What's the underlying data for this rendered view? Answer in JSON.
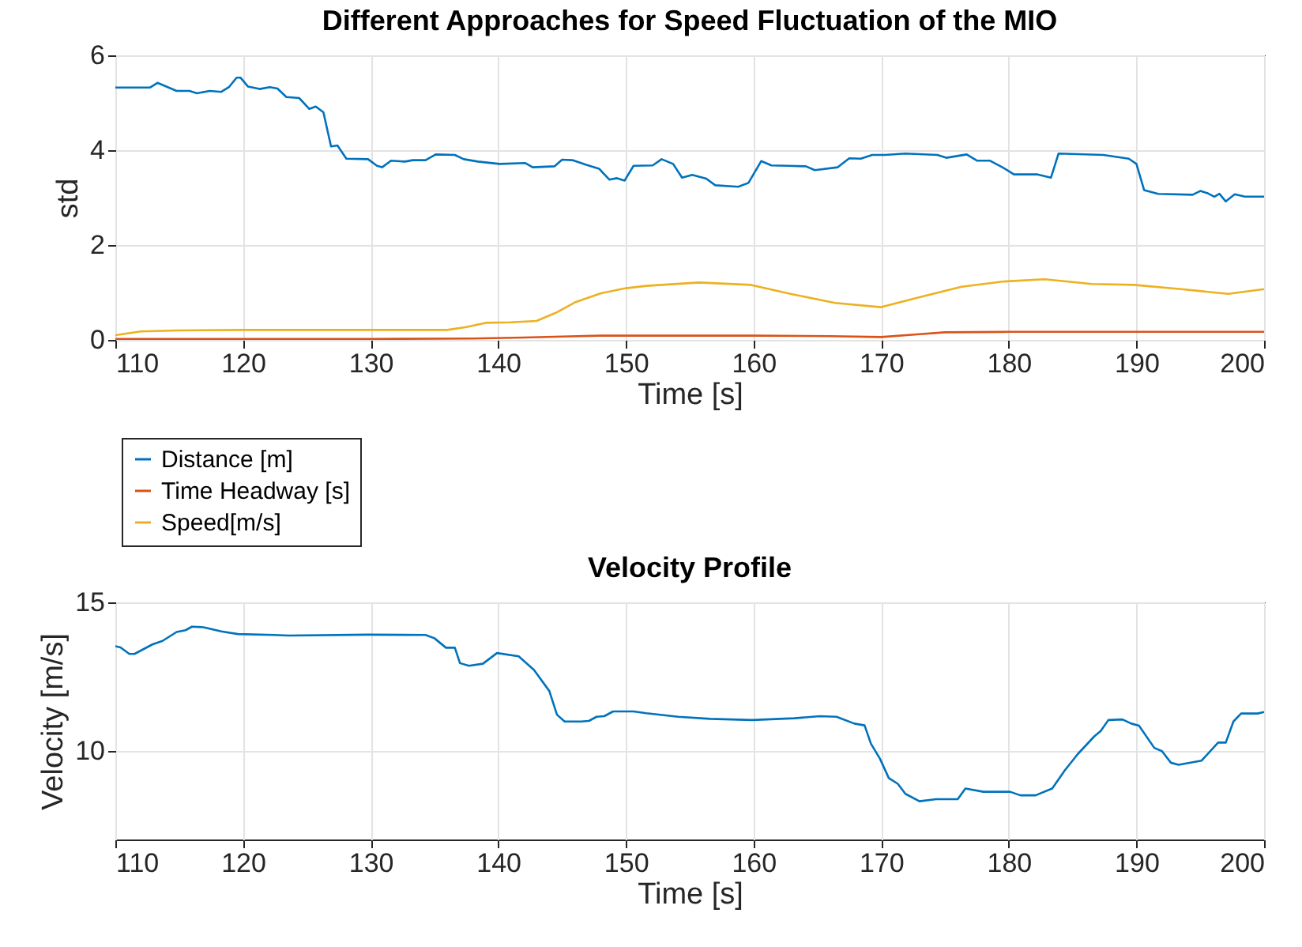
{
  "chart_data": [
    {
      "type": "line",
      "title": "Different Approaches for Speed Fluctuation of the MIO",
      "xlabel": "Time [s]",
      "ylabel": "std",
      "xlim": [
        110,
        200
      ],
      "xticks": [
        110,
        120,
        130,
        140,
        150,
        160,
        170,
        180,
        190,
        200
      ],
      "ylim": [
        0,
        6
      ],
      "yticks": [
        0,
        2,
        4,
        6
      ],
      "grid": true,
      "legend": "bottom left",
      "series": [
        {
          "name": "Distance [m]",
          "color": "#0072bd",
          "x": [
            110,
            112.7,
            113.3,
            114.8,
            115.8,
            116.4,
            117.4,
            118.3,
            118.9,
            119.5,
            119.8,
            120.4,
            121.3,
            122.1,
            122.7,
            123.4,
            124.4,
            125.2,
            125.7,
            126.3,
            126.9,
            127.4,
            128.1,
            129.8,
            130.5,
            130.9,
            131.6,
            132.7,
            133.3,
            134.3,
            135.1,
            136.6,
            137.3,
            138.4,
            140.1,
            142.1,
            142.7,
            144.4,
            145,
            145.8,
            146.9,
            147.9,
            148.7,
            149.3,
            149.9,
            150.6,
            152.1,
            152.8,
            153.7,
            154.4,
            155.2,
            156.3,
            157,
            158.8,
            159.6,
            160.6,
            161.4,
            162.7,
            164.1,
            164.8,
            166.6,
            167.5,
            168.4,
            169.3,
            170.3,
            171.9,
            174.4,
            175.1,
            176.7,
            177.5,
            178.5,
            179.5,
            180.4,
            182.2,
            183.3,
            183.9,
            187.4,
            189.4,
            190,
            190.6,
            191.7,
            194.4,
            195,
            195.6,
            196.1,
            196.5,
            197,
            197.7,
            198.5,
            200
          ],
          "values": [
            5.32,
            5.32,
            5.42,
            5.25,
            5.25,
            5.2,
            5.25,
            5.23,
            5.33,
            5.53,
            5.53,
            5.34,
            5.29,
            5.33,
            5.3,
            5.12,
            5.1,
            4.87,
            4.92,
            4.8,
            4.08,
            4.1,
            3.82,
            3.81,
            3.67,
            3.64,
            3.78,
            3.76,
            3.79,
            3.79,
            3.91,
            3.9,
            3.81,
            3.76,
            3.71,
            3.73,
            3.64,
            3.66,
            3.8,
            3.79,
            3.69,
            3.61,
            3.38,
            3.41,
            3.36,
            3.67,
            3.68,
            3.81,
            3.71,
            3.42,
            3.48,
            3.4,
            3.26,
            3.23,
            3.31,
            3.77,
            3.68,
            3.67,
            3.66,
            3.58,
            3.64,
            3.83,
            3.82,
            3.9,
            3.9,
            3.93,
            3.9,
            3.84,
            3.91,
            3.78,
            3.78,
            3.64,
            3.49,
            3.49,
            3.42,
            3.93,
            3.9,
            3.82,
            3.71,
            3.16,
            3.08,
            3.06,
            3.14,
            3.09,
            3.02,
            3.08,
            2.92,
            3.07,
            3.02,
            3.02
          ]
        },
        {
          "name": "Time Headway [s]",
          "color": "#d95319",
          "x": [
            110,
            130,
            138,
            142,
            145,
            148,
            152,
            160,
            166,
            170,
            173,
            175,
            180,
            190,
            200
          ],
          "values": [
            0.02,
            0.02,
            0.03,
            0.05,
            0.07,
            0.09,
            0.09,
            0.09,
            0.08,
            0.06,
            0.12,
            0.16,
            0.17,
            0.17,
            0.17
          ]
        },
        {
          "name": "Speed[m/s]",
          "color": "#edb120",
          "x": [
            110,
            112,
            115,
            120,
            130,
            136,
            137.5,
            139,
            141,
            143,
            144.5,
            146,
            148,
            150,
            151.6,
            155.7,
            159.8,
            163.1,
            166.4,
            170,
            173,
            176.3,
            179.5,
            182.8,
            186.5,
            189.8,
            193.5,
            197.2,
            200
          ],
          "values": [
            0.1,
            0.18,
            0.2,
            0.21,
            0.21,
            0.21,
            0.27,
            0.36,
            0.37,
            0.4,
            0.57,
            0.79,
            0.98,
            1.09,
            1.14,
            1.21,
            1.16,
            0.96,
            0.78,
            0.69,
            0.9,
            1.12,
            1.23,
            1.28,
            1.18,
            1.16,
            1.07,
            0.97,
            1.07
          ]
        }
      ]
    },
    {
      "type": "line",
      "title": "Velocity Profile",
      "xlabel": "Time [s]",
      "ylabel": "Velocity [m/s]",
      "xlim": [
        110,
        200
      ],
      "xticks": [
        110,
        120,
        130,
        140,
        150,
        160,
        170,
        180,
        190,
        200
      ],
      "ylim": [
        7,
        15
      ],
      "yticks": [
        10,
        15
      ],
      "grid": true,
      "series": [
        {
          "color": "#0072bd",
          "x": [
            110,
            110.4,
            111.1,
            111.5,
            112.9,
            113.7,
            114.8,
            115.5,
            116,
            116.9,
            118.3,
            119.6,
            122.4,
            123.6,
            129.8,
            134.3,
            135,
            135.9,
            136.6,
            137,
            137.7,
            138.8,
            139.9,
            141.6,
            142.8,
            144,
            144.6,
            145.2,
            146.5,
            147.1,
            147.7,
            148.3,
            149,
            150.6,
            151.6,
            154.1,
            156.6,
            159.9,
            163.2,
            165.2,
            166.5,
            167.9,
            168.7,
            169.2,
            169.9,
            170.6,
            171.3,
            171.9,
            173,
            174.3,
            176,
            176.6,
            178,
            180.1,
            180.9,
            182.1,
            183.4,
            184.4,
            185.4,
            186.7,
            187.2,
            187.8,
            188.9,
            189.6,
            190.2,
            191.4,
            192,
            192.7,
            193.3,
            195.1,
            196.4,
            197,
            197.6,
            198.2,
            199.5,
            200
          ],
          "values": [
            13.52,
            13.48,
            13.26,
            13.26,
            13.58,
            13.7,
            14.0,
            14.06,
            14.18,
            14.16,
            14.02,
            13.93,
            13.9,
            13.88,
            13.91,
            13.9,
            13.79,
            13.47,
            13.47,
            12.95,
            12.86,
            12.93,
            13.29,
            13.18,
            12.72,
            12.01,
            11.21,
            10.98,
            10.98,
            11.0,
            11.14,
            11.16,
            11.32,
            11.32,
            11.26,
            11.14,
            11.07,
            11.03,
            11.09,
            11.16,
            11.14,
            10.91,
            10.85,
            10.23,
            9.73,
            9.07,
            8.88,
            8.54,
            8.29,
            8.36,
            8.36,
            8.72,
            8.61,
            8.61,
            8.49,
            8.49,
            8.72,
            9.34,
            9.88,
            10.48,
            10.66,
            11.03,
            11.05,
            10.91,
            10.84,
            10.09,
            9.98,
            9.59,
            9.52,
            9.66,
            10.27,
            10.27,
            10.98,
            11.25,
            11.25,
            11.3
          ]
        }
      ]
    }
  ]
}
